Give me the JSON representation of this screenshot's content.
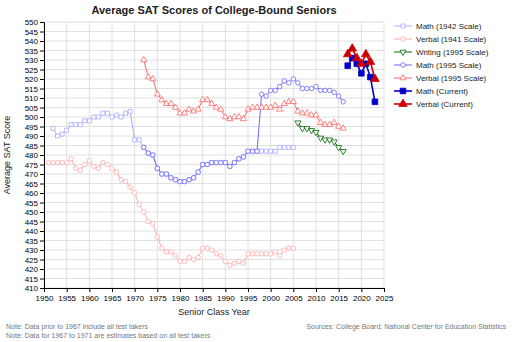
{
  "chart_data": {
    "type": "line",
    "title": "Average SAT Scores of College-Bound Seniors",
    "x_label": "Senior Class Year",
    "y_label": "Average SAT Score",
    "xlim": [
      1950,
      2025
    ],
    "ylim": [
      410,
      550
    ],
    "xticks": [
      1950,
      1955,
      1960,
      1965,
      1970,
      1975,
      1980,
      1985,
      1990,
      1995,
      2000,
      2005,
      2010,
      2015,
      2020,
      2025
    ],
    "yticks": [
      410,
      415,
      420,
      425,
      430,
      435,
      440,
      445,
      450,
      455,
      460,
      465,
      470,
      475,
      480,
      485,
      490,
      495,
      500,
      505,
      510,
      515,
      520,
      525,
      530,
      535,
      540,
      545,
      550
    ],
    "grid": true,
    "legend": "right",
    "annotations": [
      "Note: Data prior to 1967 include all test takers",
      "Note: Data for 1967 to 1971 are estimates based on all test takers",
      "Sources: College Board; National Center for Education Statistics"
    ],
    "series": [
      {
        "name": "Math (1942 Scale)",
        "color": "#aaaaff",
        "marker": "square-open",
        "x": [
          1952,
          1953,
          1954,
          1955,
          1956,
          1957,
          1958,
          1959,
          1960,
          1961,
          1962,
          1963,
          1964,
          1965,
          1966,
          1967,
          1968,
          1969,
          1970,
          1971,
          1972,
          1973,
          1974,
          1975,
          1976,
          1977,
          1978,
          1979,
          1980,
          1981,
          1982,
          1983,
          1984,
          1985,
          1986,
          1987,
          1988,
          1989,
          1990,
          1991,
          1992,
          1993,
          1994,
          1995,
          1996,
          1997,
          1998,
          1999,
          2000,
          2001,
          2002,
          2003,
          2004,
          2005
        ],
        "values": [
          494,
          490,
          491,
          493,
          496,
          496,
          496,
          498,
          498,
          500,
          500,
          502,
          502,
          500,
          501,
          500,
          502,
          503,
          488,
          488,
          484,
          481,
          480,
          473,
          470,
          470,
          468,
          467,
          466,
          466,
          467,
          468,
          471,
          475,
          475,
          476,
          476,
          476,
          476,
          474,
          476,
          478,
          479,
          482,
          482,
          482,
          482,
          482,
          482,
          482,
          484,
          484,
          484,
          484
        ]
      },
      {
        "name": "Verbal (1941 Scale)",
        "color": "#ffaaaa",
        "marker": "circle-open",
        "x": [
          1951,
          1952,
          1953,
          1954,
          1955,
          1956,
          1957,
          1958,
          1959,
          1960,
          1961,
          1962,
          1963,
          1964,
          1965,
          1966,
          1967,
          1968,
          1969,
          1970,
          1971,
          1972,
          1973,
          1974,
          1975,
          1976,
          1977,
          1978,
          1979,
          1980,
          1981,
          1982,
          1983,
          1984,
          1985,
          1986,
          1987,
          1988,
          1989,
          1990,
          1991,
          1992,
          1993,
          1994,
          1995,
          1996,
          1997,
          1998,
          1999,
          2000,
          2001,
          2002,
          2003,
          2004,
          2005
        ],
        "values": [
          476,
          476,
          476,
          476,
          476,
          478,
          473,
          472,
          475,
          477,
          474,
          473,
          476,
          475,
          473,
          471,
          467,
          466,
          463,
          460,
          454,
          450,
          445,
          444,
          437,
          431,
          429,
          429,
          427,
          424,
          424,
          426,
          425,
          426,
          431,
          431,
          430,
          428,
          427,
          424,
          422,
          423,
          424,
          423,
          428,
          428,
          428,
          428,
          428,
          428,
          429,
          427,
          430,
          431,
          431
        ]
      },
      {
        "name": "Writing (1995 Scale)",
        "color": "#006600",
        "marker": "triangle-down-open",
        "x": [
          2006,
          2007,
          2008,
          2009,
          2010,
          2011,
          2012,
          2013,
          2014,
          2015,
          2016
        ],
        "values": [
          497,
          494,
          494,
          493,
          492,
          489,
          488,
          488,
          487,
          484,
          482
        ]
      },
      {
        "name": "Math (1995 Scale)",
        "color": "#6666ff",
        "marker": "circle-open",
        "x": [
          1972,
          1973,
          1974,
          1975,
          1976,
          1977,
          1978,
          1979,
          1980,
          1981,
          1982,
          1983,
          1984,
          1985,
          1986,
          1987,
          1988,
          1989,
          1990,
          1991,
          1992,
          1993,
          1994,
          1995,
          1996,
          1997,
          1998,
          1999,
          2000,
          2001,
          2002,
          2003,
          2004,
          2005,
          2006,
          2007,
          2008,
          2009,
          2010,
          2011,
          2012,
          2013,
          2014,
          2015,
          2016
        ],
        "values": [
          484,
          481,
          480,
          473,
          470,
          470,
          468,
          467,
          466,
          466,
          467,
          468,
          471,
          475,
          475,
          476,
          476,
          476,
          476,
          474,
          476,
          478,
          479,
          482,
          482,
          482,
          512,
          511,
          514,
          514,
          516,
          519,
          518,
          520,
          518,
          515,
          515,
          515,
          516,
          514,
          514,
          514,
          513,
          511,
          508
        ]
      },
      {
        "name": "Verbal (1995 Scale)",
        "color": "#ff6666",
        "marker": "triangle-up-open",
        "x": [
          1972,
          1973,
          1974,
          1975,
          1976,
          1977,
          1978,
          1979,
          1980,
          1981,
          1982,
          1983,
          1984,
          1985,
          1986,
          1987,
          1988,
          1989,
          1990,
          1991,
          1992,
          1993,
          1994,
          1995,
          1996,
          1997,
          1998,
          1999,
          2000,
          2001,
          2002,
          2003,
          2004,
          2005,
          2006,
          2007,
          2008,
          2009,
          2010,
          2011,
          2012,
          2013,
          2014,
          2015,
          2016
        ],
        "values": [
          530,
          521,
          520,
          512,
          509,
          507,
          507,
          505,
          502,
          502,
          504,
          503,
          504,
          509,
          509,
          507,
          505,
          504,
          500,
          499,
          500,
          500,
          499,
          504,
          505,
          505,
          505,
          505,
          505,
          506,
          504,
          507,
          508,
          508,
          503,
          502,
          502,
          501,
          501,
          497,
          496,
          496,
          497,
          495,
          494
        ]
      },
      {
        "name": "Math (Current)",
        "color": "#0000cc",
        "marker": "square",
        "x": [
          2017,
          2018,
          2019,
          2020,
          2021,
          2022,
          2023
        ],
        "values": [
          527,
          531,
          528,
          523,
          528,
          521,
          508
        ]
      },
      {
        "name": "Verbal (Current)",
        "color": "#cc0000",
        "marker": "triangle-up",
        "x": [
          2017,
          2018,
          2019,
          2020,
          2021,
          2022,
          2023
        ],
        "values": [
          533,
          536,
          531,
          528,
          533,
          529,
          520
        ]
      }
    ]
  }
}
